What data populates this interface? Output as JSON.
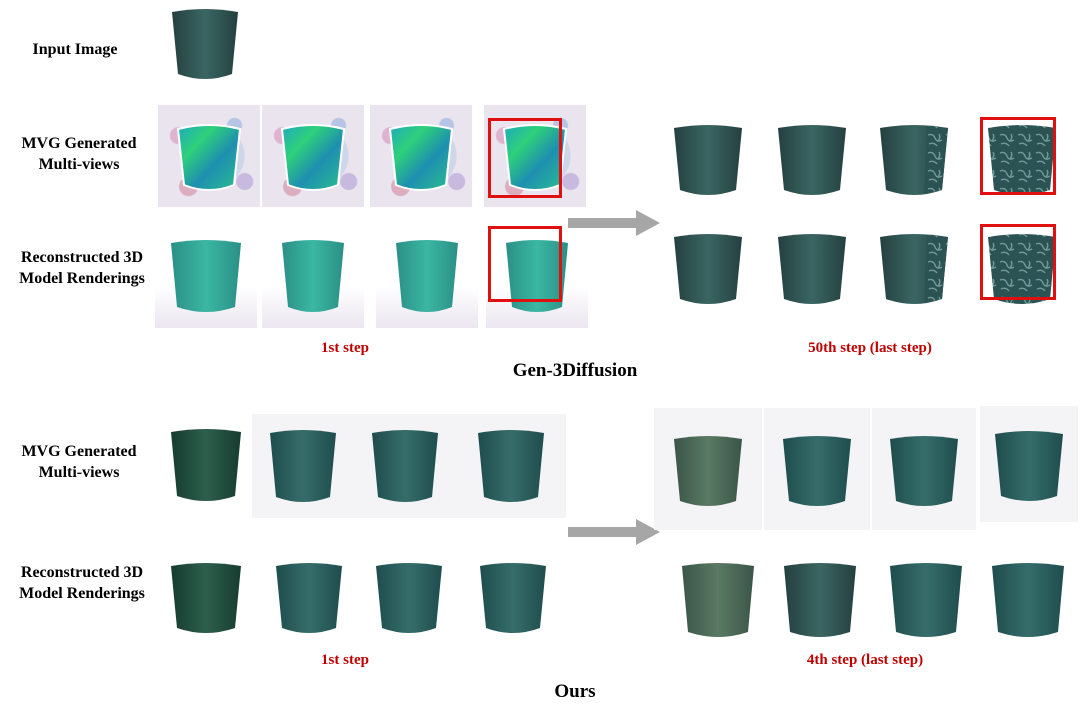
{
  "labels": {
    "input_image": "Input  Image",
    "mvg_line1": "MVG Generated",
    "mvg_line2": "Multi-views",
    "recon_line1": "Reconstructed 3D",
    "recon_line2": "Model Renderings"
  },
  "gen3diffusion": {
    "title": "Gen-3Diffusion",
    "step_first": "1st step",
    "step_last": "50th step (last step)"
  },
  "ours": {
    "title": "Ours",
    "step_first": "1st step",
    "step_last": "4th step (last step)"
  },
  "colors": {
    "step_text": "#c00000",
    "highlight_box": "#e01010",
    "arrow": "#a6a6a6",
    "pot_dark": "#2f5a58",
    "pot_noisy": "#2fb0a0"
  }
}
